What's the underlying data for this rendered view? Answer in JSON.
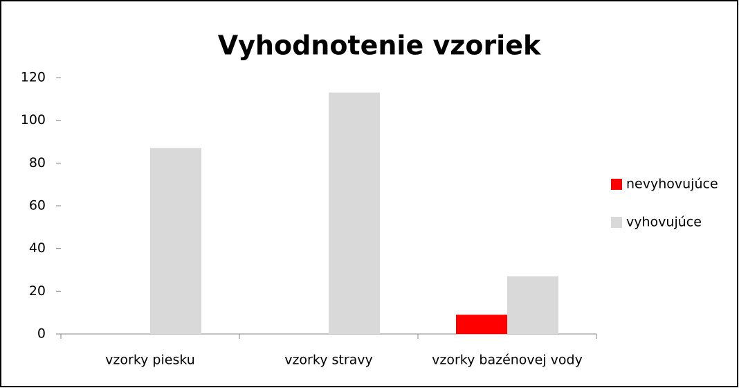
{
  "chart_data": {
    "type": "bar",
    "title": "Vyhodnotenie vzoriek",
    "categories": [
      "vzorky piesku",
      "vzorky stravy",
      "vzorky bazénovej vody"
    ],
    "series": [
      {
        "name": "nevyhovujúce",
        "color": "#ff0000",
        "values": [
          0,
          0,
          9
        ]
      },
      {
        "name": "vyhovujúce",
        "color": "#d9d9d9",
        "values": [
          87,
          113,
          27
        ]
      }
    ],
    "ylim": [
      0,
      120
    ],
    "yticks": [
      0,
      20,
      40,
      60,
      80,
      100,
      120
    ],
    "grid": false,
    "legend": "right"
  }
}
